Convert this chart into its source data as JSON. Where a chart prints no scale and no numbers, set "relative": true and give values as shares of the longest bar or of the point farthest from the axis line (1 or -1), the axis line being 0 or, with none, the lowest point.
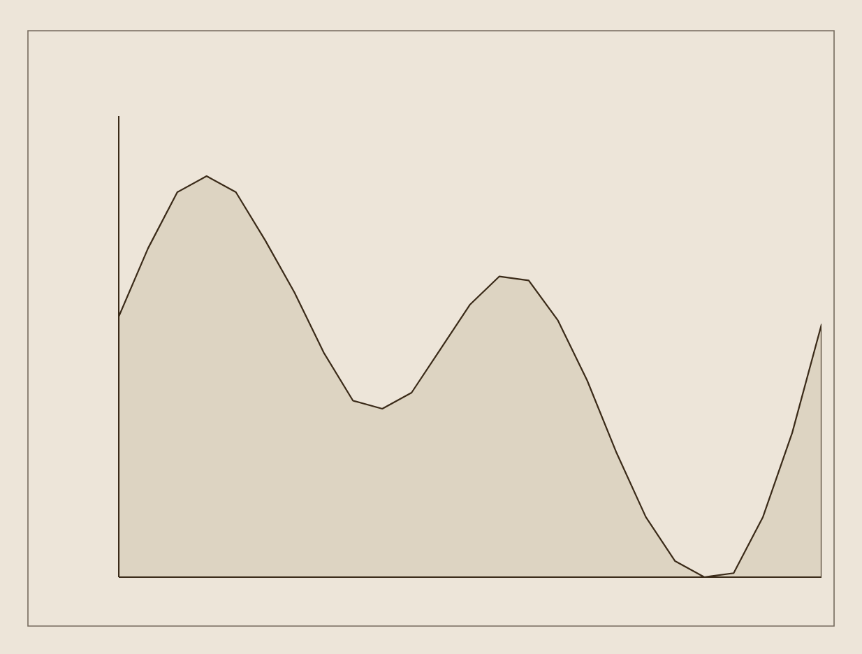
{
  "chart_data": {
    "type": "area",
    "relative": true,
    "color": "#ddd4c2",
    "categories": [
      null,
      null,
      null,
      null,
      null,
      null,
      null,
      null,
      null,
      null,
      null,
      null,
      null,
      null,
      null,
      null,
      null,
      null,
      null,
      null,
      null,
      null,
      null,
      null,
      null
    ],
    "values": [
      0.65,
      0.82,
      0.96,
      1,
      0.96,
      0.84,
      0.71,
      0.56,
      0.44,
      0.42,
      0.46,
      0.57,
      0.68,
      0.75,
      0.74,
      0.64,
      0.49,
      0.31,
      0.15,
      0.04,
      0,
      0.01,
      0.15,
      0.36,
      0.63
    ]
  }
}
